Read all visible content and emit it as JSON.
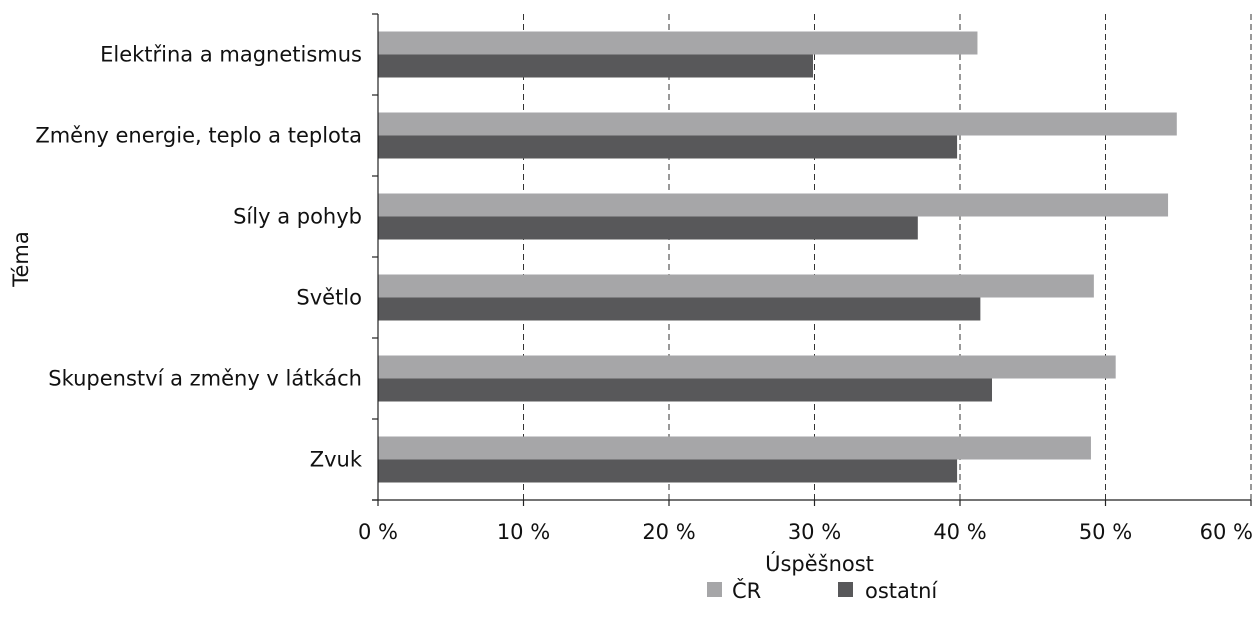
{
  "chart_data": {
    "type": "bar",
    "orientation": "horizontal",
    "categories": [
      "Elektřina a magnetismus",
      "Změny energie, teplo a teplota",
      "Síly a pohyb",
      "Světlo",
      "Skupenství a změny v látkách",
      "Zvuk"
    ],
    "series": [
      {
        "name": "ČR",
        "color": "#a6a6a8",
        "values": [
          41.2,
          54.9,
          54.3,
          49.2,
          50.7,
          49.0
        ]
      },
      {
        "name": "ostatní",
        "color": "#58585a",
        "values": [
          29.9,
          39.8,
          37.1,
          41.4,
          42.2,
          39.8
        ]
      }
    ],
    "xlabel": "Úspěšnost",
    "ylabel": "Téma",
    "xlim": [
      0,
      60
    ],
    "xticks": [
      0,
      10,
      20,
      30,
      40,
      50,
      60
    ],
    "xtick_labels": [
      "0 %",
      "10 %",
      "20 %",
      "30 %",
      "40 %",
      "50 %",
      "60 %"
    ],
    "grid": "vertical dashed",
    "legend_position": "bottom-center"
  }
}
